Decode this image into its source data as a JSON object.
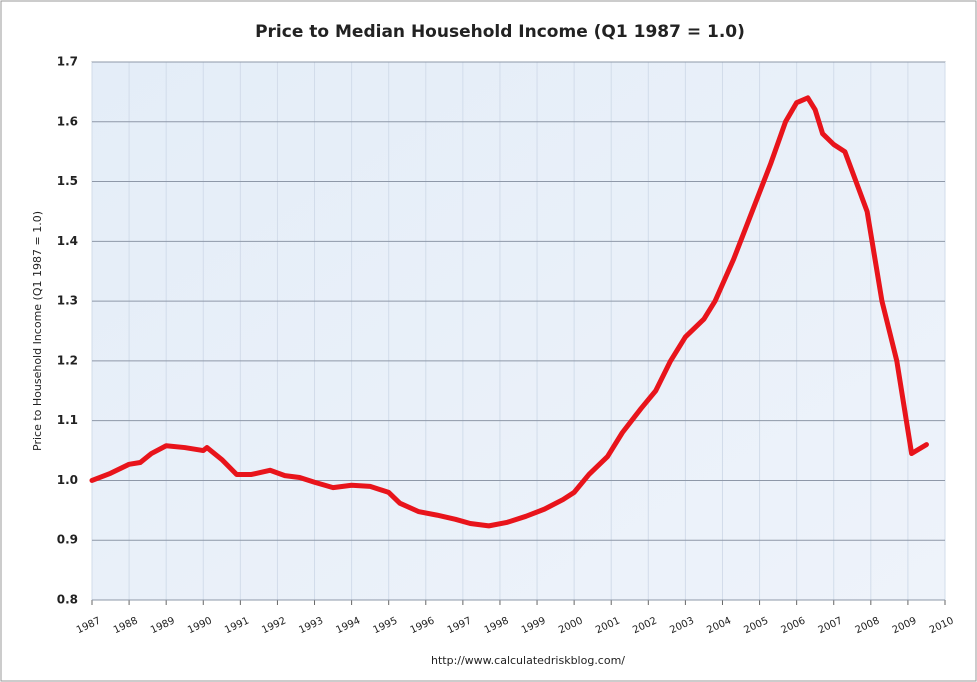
{
  "chart_data": {
    "type": "line",
    "title": "Price to Median Household Income (Q1 1987 = 1.0)",
    "y_label": "Price to Household Income (Q1 1987 = 1.0)",
    "source": "http://www.calculatedriskblog.com/",
    "xlim": [
      1987,
      2010
    ],
    "xticks": [
      1987,
      1988,
      1989,
      1990,
      1991,
      1992,
      1993,
      1994,
      1995,
      1996,
      1997,
      1998,
      1999,
      2000,
      2001,
      2002,
      2003,
      2004,
      2005,
      2006,
      2007,
      2008,
      2009,
      2010
    ],
    "ylim": [
      0.8,
      1.7
    ],
    "yticks": [
      {
        "value": 0.8,
        "label": "0.8"
      },
      {
        "value": 0.9,
        "label": "0.9"
      },
      {
        "value": 1.0,
        "label": "1.0"
      },
      {
        "value": 1.1,
        "label": "1.1"
      },
      {
        "value": 1.2,
        "label": "1.2"
      },
      {
        "value": 1.3,
        "label": "1.3"
      },
      {
        "value": 1.4,
        "label": "1.4"
      },
      {
        "value": 1.5,
        "label": "1.5"
      },
      {
        "value": 1.6,
        "label": "1.6"
      },
      {
        "value": 1.7,
        "label": "1.7"
      }
    ],
    "grid": true,
    "x": [
      1987.0,
      1987.5,
      1988.0,
      1988.3,
      1988.6,
      1989.0,
      1989.5,
      1990.0,
      1990.1,
      1990.5,
      1990.9,
      1991.3,
      1991.8,
      1992.2,
      1992.6,
      1993.0,
      1993.5,
      1994.0,
      1994.5,
      1995.0,
      1995.3,
      1995.8,
      1996.3,
      1996.8,
      1997.2,
      1997.7,
      1998.2,
      1998.7,
      1999.2,
      1999.7,
      2000.0,
      2000.4,
      2000.9,
      2001.3,
      2001.8,
      2002.2,
      2002.6,
      2003.0,
      2003.5,
      2003.8,
      2004.3,
      2004.8,
      2005.3,
      2005.7,
      2006.0,
      2006.3,
      2006.5,
      2006.7,
      2007.0,
      2007.3,
      2007.6,
      2007.9,
      2008.3,
      2008.7,
      2009.1,
      2009.5
    ],
    "series": [
      {
        "name": "Price to Median Household Income",
        "color": "#e8141b",
        "values": [
          1.0,
          1.012,
          1.027,
          1.03,
          1.045,
          1.058,
          1.055,
          1.05,
          1.055,
          1.035,
          1.01,
          1.01,
          1.017,
          1.008,
          1.005,
          0.997,
          0.988,
          0.992,
          0.99,
          0.98,
          0.962,
          0.948,
          0.942,
          0.935,
          0.928,
          0.924,
          0.93,
          0.94,
          0.952,
          0.968,
          0.98,
          1.01,
          1.04,
          1.08,
          1.12,
          1.15,
          1.2,
          1.24,
          1.27,
          1.3,
          1.37,
          1.45,
          1.53,
          1.6,
          1.632,
          1.64,
          1.62,
          1.58,
          1.562,
          1.55,
          1.5,
          1.45,
          1.3,
          1.2,
          1.045,
          1.06
        ]
      }
    ]
  }
}
